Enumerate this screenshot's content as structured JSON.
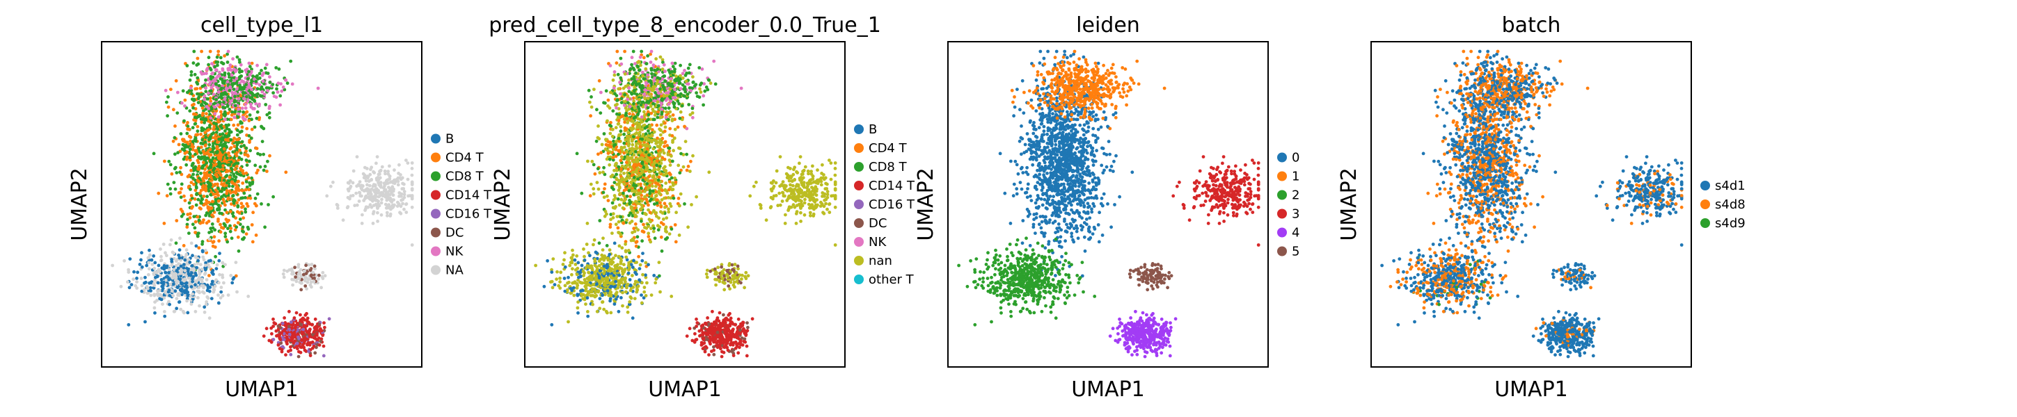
{
  "chart_data": [
    {
      "type": "scatter",
      "title": "cell_type_l1",
      "xlabel": "UMAP1",
      "ylabel": "UMAP2",
      "legend_position": "right",
      "categories": [
        {
          "name": "B",
          "color": "#1f77b4"
        },
        {
          "name": "CD4 T",
          "color": "#ff7f0e"
        },
        {
          "name": "CD8 T",
          "color": "#2ca02c"
        },
        {
          "name": "CD14 T",
          "color": "#d62728"
        },
        {
          "name": "CD16 T",
          "color": "#9467bd"
        },
        {
          "name": "DC",
          "color": "#8c564b"
        },
        {
          "name": "NK",
          "color": "#e377c2"
        },
        {
          "name": "NA",
          "color": "#d3d3d3"
        }
      ]
    },
    {
      "type": "scatter",
      "title": "pred_cell_type_8_encoder_0.0_True_1",
      "xlabel": "UMAP1",
      "ylabel": "UMAP2",
      "legend_position": "right",
      "categories": [
        {
          "name": "B",
          "color": "#1f77b4"
        },
        {
          "name": "CD4 T",
          "color": "#ff7f0e"
        },
        {
          "name": "CD8 T",
          "color": "#2ca02c"
        },
        {
          "name": "CD14 T",
          "color": "#d62728"
        },
        {
          "name": "CD16 T",
          "color": "#9467bd"
        },
        {
          "name": "DC",
          "color": "#8c564b"
        },
        {
          "name": "NK",
          "color": "#e377c2"
        },
        {
          "name": "nan",
          "color": "#bcbd22"
        },
        {
          "name": "other T",
          "color": "#17becf"
        }
      ]
    },
    {
      "type": "scatter",
      "title": "leiden",
      "xlabel": "UMAP1",
      "ylabel": "UMAP2",
      "legend_position": "right",
      "categories": [
        {
          "name": "0",
          "color": "#1f77b4"
        },
        {
          "name": "1",
          "color": "#ff7f0e"
        },
        {
          "name": "2",
          "color": "#2ca02c"
        },
        {
          "name": "3",
          "color": "#d62728"
        },
        {
          "name": "4",
          "color": "#a23cf5"
        },
        {
          "name": "5",
          "color": "#8c564b"
        }
      ]
    },
    {
      "type": "scatter",
      "title": "batch",
      "xlabel": "UMAP1",
      "ylabel": "UMAP2",
      "legend_position": "right",
      "categories": [
        {
          "name": "s4d1",
          "color": "#1f77b4"
        },
        {
          "name": "s4d8",
          "color": "#ff7f0e"
        },
        {
          "name": "s4d9",
          "color": "#2ca02c"
        }
      ]
    }
  ]
}
